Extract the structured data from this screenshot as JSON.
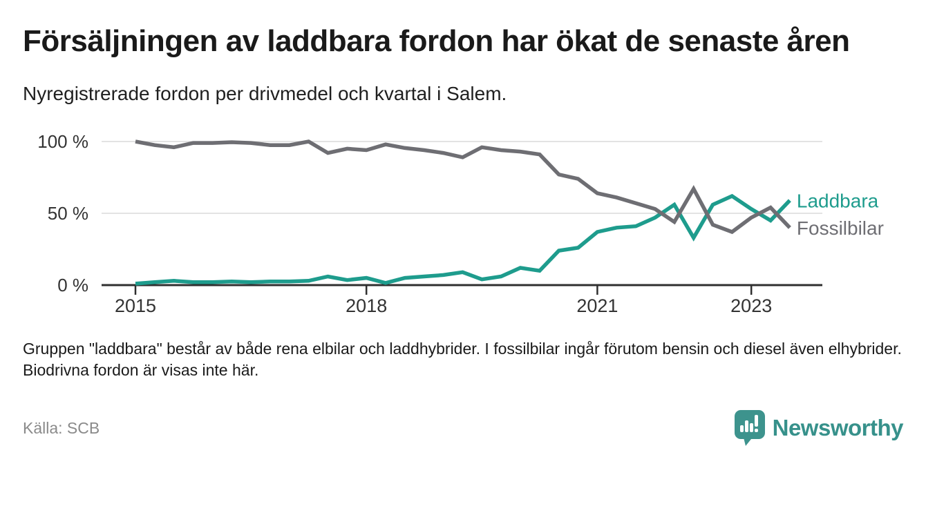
{
  "header": {
    "title": "Försäljningen av laddbara fordon har ökat de senaste åren",
    "subtitle": "Nyregistrerade fordon per drivmedel och kvartal i Salem."
  },
  "footnote": "Gruppen \"laddbara\" består av både rena elbilar och laddhybrider. I fossilbilar ingår förutom bensin och diesel även elhybrider. Biodrivna fordon är visas inte här.",
  "source": "Källa: SCB",
  "logo": {
    "text": "Newsworthy",
    "icon": "newsworthy-pin-barchart-icon",
    "color": "#37918b"
  },
  "colors": {
    "laddbara": "#1e9c8d",
    "fossilbilar": "#6e6e73",
    "gridline": "#dadada",
    "axis": "#2f2f2f",
    "tick_text": "#333333",
    "title_text": "#1a1a1a",
    "source_text": "#8a8a8a"
  },
  "chart_data": {
    "type": "line",
    "title": "Försäljningen av laddbara fordon har ökat de senaste åren",
    "subtitle": "Nyregistrerade fordon per drivmedel och kvartal i Salem.",
    "xlabel": "",
    "ylabel": "",
    "ylim": [
      0,
      100
    ],
    "grid": "horizontal",
    "legend_position": "end-of-line",
    "x": [
      "2015 Q1",
      "2015 Q2",
      "2015 Q3",
      "2015 Q4",
      "2016 Q1",
      "2016 Q2",
      "2016 Q3",
      "2016 Q4",
      "2017 Q1",
      "2017 Q2",
      "2017 Q3",
      "2017 Q4",
      "2018 Q1",
      "2018 Q2",
      "2018 Q3",
      "2018 Q4",
      "2019 Q1",
      "2019 Q2",
      "2019 Q3",
      "2019 Q4",
      "2020 Q1",
      "2020 Q2",
      "2020 Q3",
      "2020 Q4",
      "2021 Q1",
      "2021 Q2",
      "2021 Q3",
      "2021 Q4",
      "2022 Q1",
      "2022 Q2",
      "2022 Q3",
      "2022 Q4",
      "2023 Q1",
      "2023 Q2",
      "2023 Q3"
    ],
    "yticks": [
      {
        "value": 0,
        "label": "0 %"
      },
      {
        "value": 50,
        "label": "50 %"
      },
      {
        "value": 100,
        "label": "100 %"
      }
    ],
    "xticks": [
      {
        "index": 0,
        "label": "2015"
      },
      {
        "index": 12,
        "label": "2018"
      },
      {
        "index": 24,
        "label": "2021"
      },
      {
        "index": 32,
        "label": "2023"
      }
    ],
    "series": [
      {
        "name": "Laddbara",
        "color": "#1e9c8d",
        "values": [
          1,
          2,
          3,
          2,
          2,
          2.5,
          2,
          2.5,
          2.5,
          3,
          6,
          3.5,
          5,
          1.5,
          5,
          6,
          7,
          9,
          4,
          6,
          12,
          10,
          24,
          26,
          37,
          40,
          41,
          47,
          56,
          33,
          56,
          62,
          53,
          45,
          59
        ]
      },
      {
        "name": "Fossilbilar",
        "color": "#6e6e73",
        "values": [
          100,
          97.5,
          96,
          99,
          99,
          99.5,
          99,
          97.5,
          97.5,
          100,
          92,
          95,
          94,
          98,
          95.5,
          94,
          92,
          89,
          96,
          94,
          93,
          91,
          77,
          74,
          64,
          61,
          57,
          53,
          44,
          67,
          42,
          37,
          47,
          54,
          40
        ]
      }
    ]
  }
}
